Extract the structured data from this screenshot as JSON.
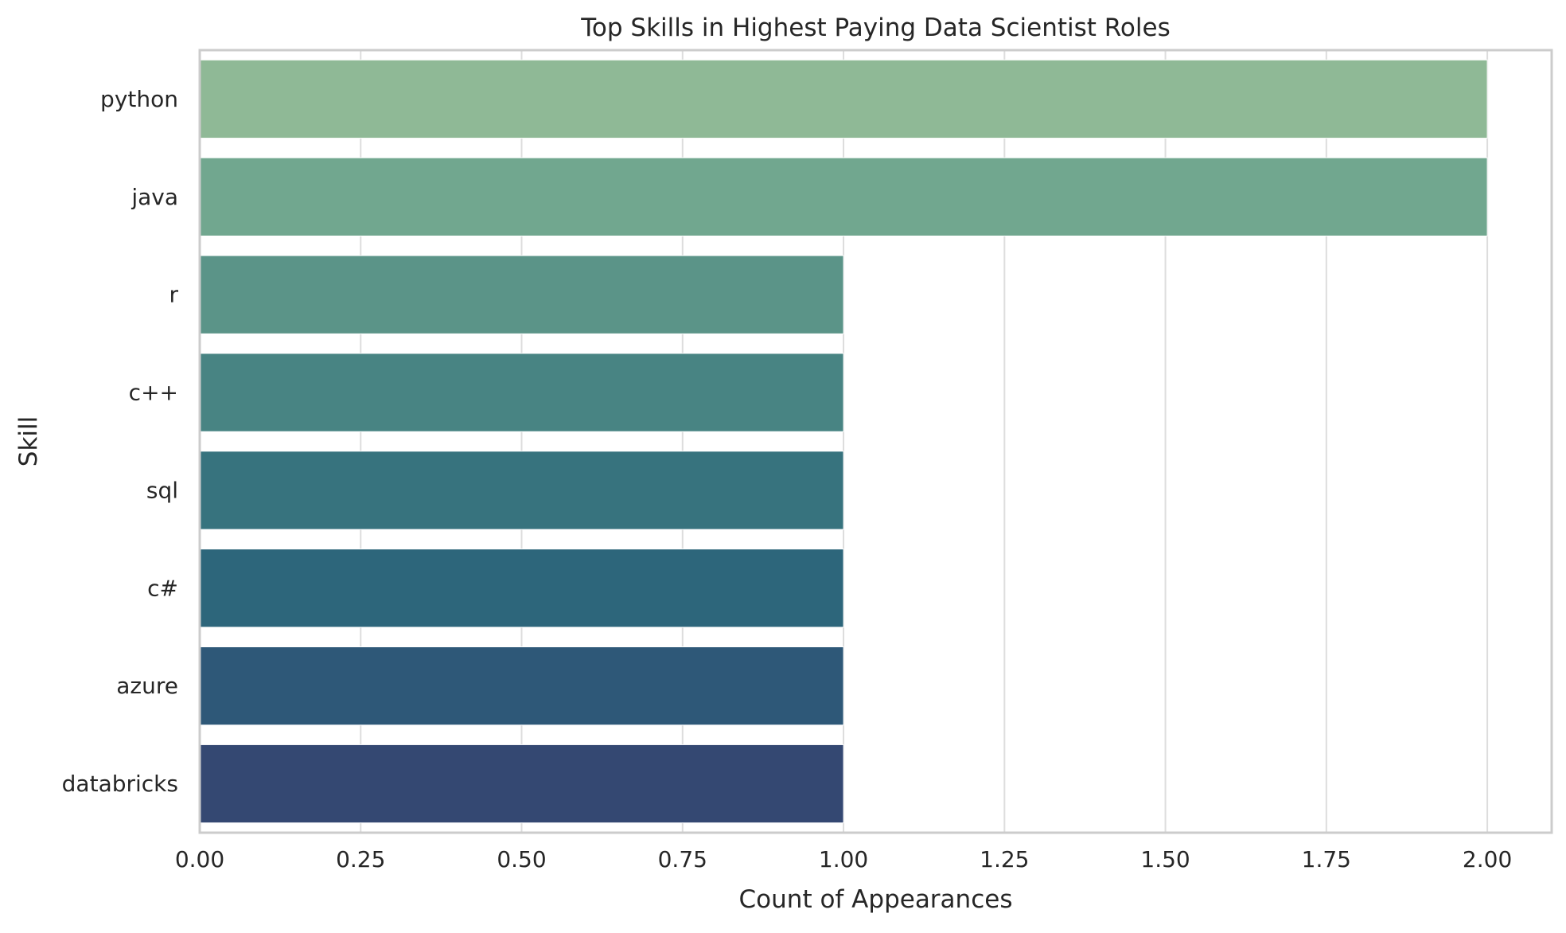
{
  "chart_data": {
    "type": "bar",
    "orientation": "horizontal",
    "title": "Top Skills in Highest Paying Data Scientist Roles",
    "xlabel": "Count of Appearances",
    "ylabel": "Skill",
    "categories": [
      "python",
      "java",
      "r",
      "c++",
      "sql",
      "c#",
      "azure",
      "databricks"
    ],
    "values": [
      2,
      2,
      1,
      1,
      1,
      1,
      1,
      1
    ],
    "xlim": [
      0,
      2.1
    ],
    "xticks": [
      0.0,
      0.25,
      0.5,
      0.75,
      1.0,
      1.25,
      1.5,
      1.75,
      2.0
    ],
    "xtick_labels": [
      "0.00",
      "0.25",
      "0.50",
      "0.75",
      "1.00",
      "1.25",
      "1.50",
      "1.75",
      "2.00"
    ],
    "grid": "vertical",
    "legend": "none",
    "colors": [
      "#8fb996",
      "#71a78f",
      "#5b9488",
      "#488483",
      "#37737e",
      "#2d667b",
      "#2e5878",
      "#344872"
    ]
  },
  "style": {
    "grid_color": "#dddddd",
    "frame_color": "#cccccc",
    "background": "#ffffff",
    "text_color": "#262626"
  }
}
